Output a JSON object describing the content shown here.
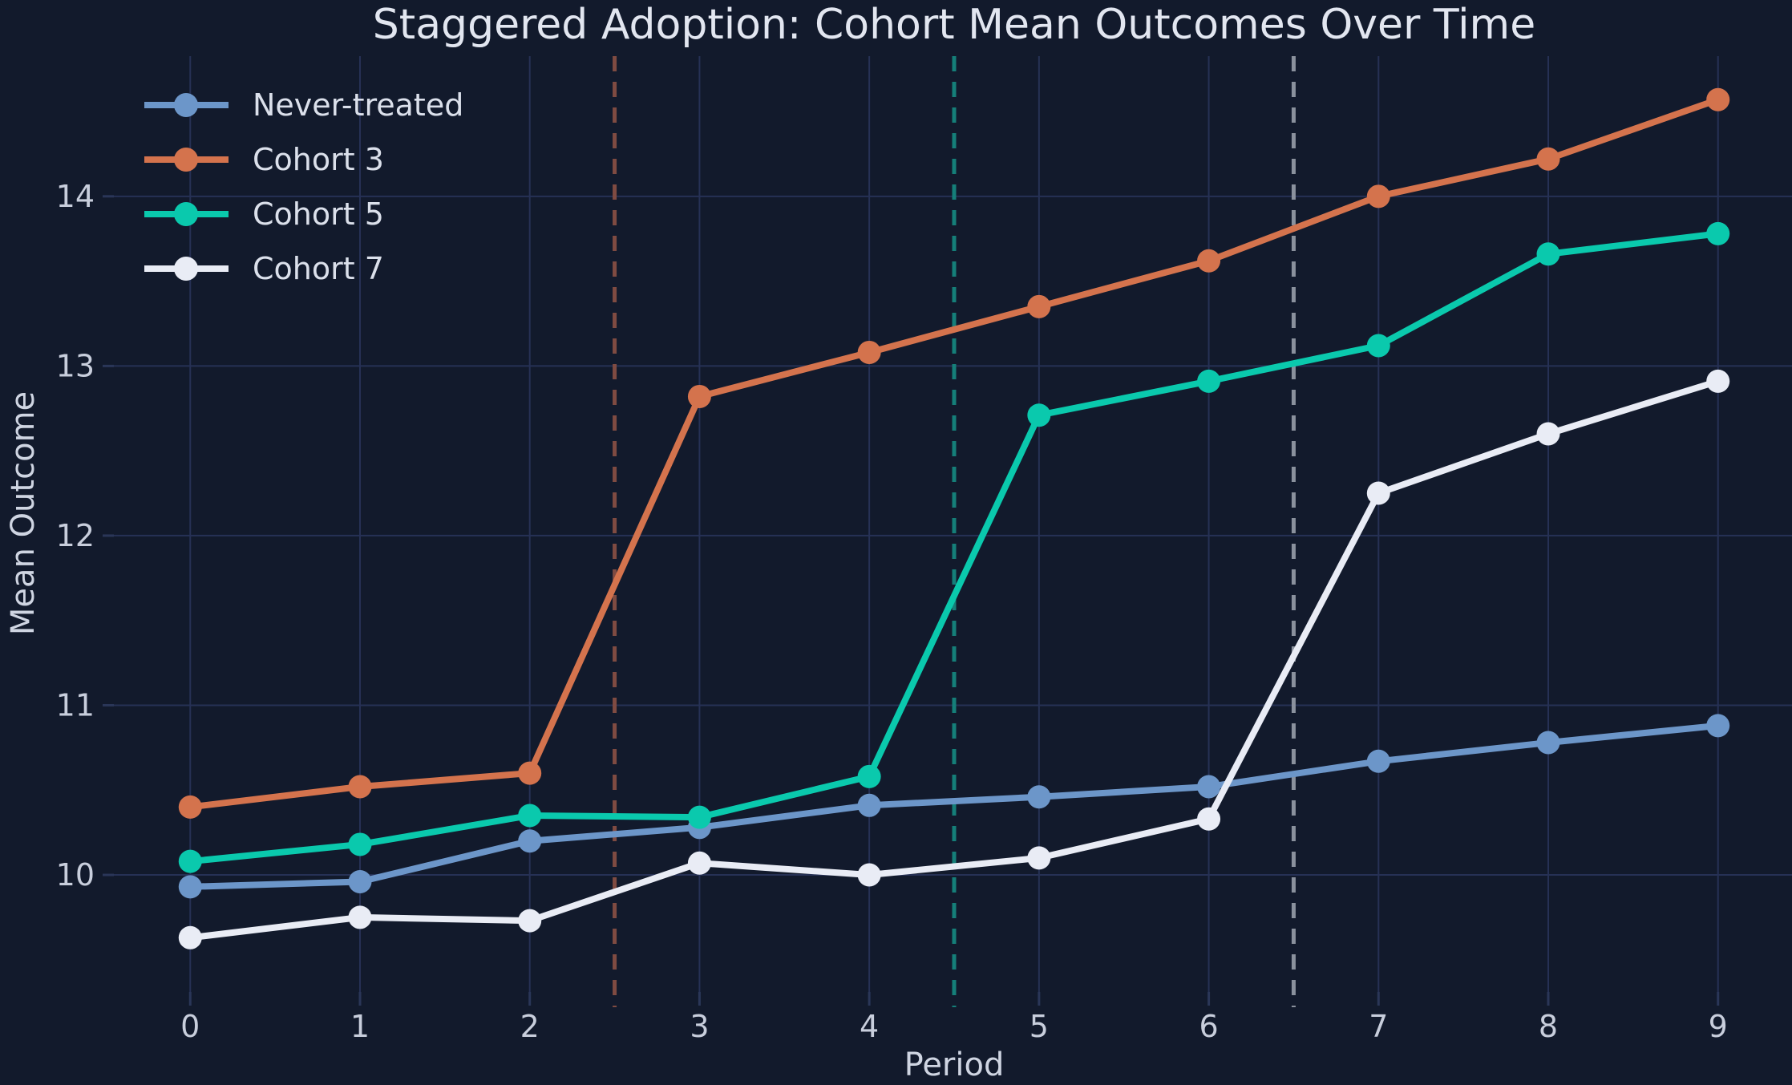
{
  "title": "Staggered Adoption: Cohort Mean Outcomes Over Time",
  "chart_data": {
    "type": "line",
    "title": "Staggered Adoption: Cohort Mean Outcomes Over Time",
    "xlabel": "Period",
    "ylabel": "Mean Outcome",
    "x": [
      0,
      1,
      2,
      3,
      4,
      5,
      6,
      7,
      8,
      9
    ],
    "series": [
      {
        "name": "Never-treated",
        "color": "#6C96C9",
        "values": [
          9.93,
          9.96,
          10.2,
          10.28,
          10.41,
          10.46,
          10.52,
          10.67,
          10.78,
          10.88
        ]
      },
      {
        "name": "Cohort 3",
        "color": "#D4734D",
        "values": [
          10.4,
          10.52,
          10.6,
          12.82,
          13.08,
          13.35,
          13.62,
          14.0,
          14.22,
          14.57
        ]
      },
      {
        "name": "Cohort 5",
        "color": "#0AC9AD",
        "values": [
          10.08,
          10.18,
          10.35,
          10.34,
          10.58,
          12.71,
          12.91,
          13.12,
          13.66,
          13.78
        ]
      },
      {
        "name": "Cohort 7",
        "color": "#E9ECF5",
        "values": [
          9.63,
          9.75,
          9.73,
          10.07,
          10.0,
          10.1,
          10.33,
          12.25,
          12.6,
          12.91
        ]
      }
    ],
    "treatment_lines": [
      {
        "x": 2.5,
        "color": "#7F4B42"
      },
      {
        "x": 4.5,
        "color": "#157F79"
      },
      {
        "x": 6.5,
        "color": "#8A919D"
      }
    ],
    "xticks": [
      0,
      1,
      2,
      3,
      4,
      5,
      6,
      7,
      8,
      9
    ],
    "yticks": [
      10,
      11,
      12,
      13,
      14
    ],
    "xlim": [
      -0.45,
      9.45
    ],
    "ylim": [
      9.31,
      14.85
    ],
    "grid": true,
    "legend_position": "upper left",
    "background": "#121A2C",
    "grid_color": "#263155",
    "tick_color": "#2A3658"
  }
}
